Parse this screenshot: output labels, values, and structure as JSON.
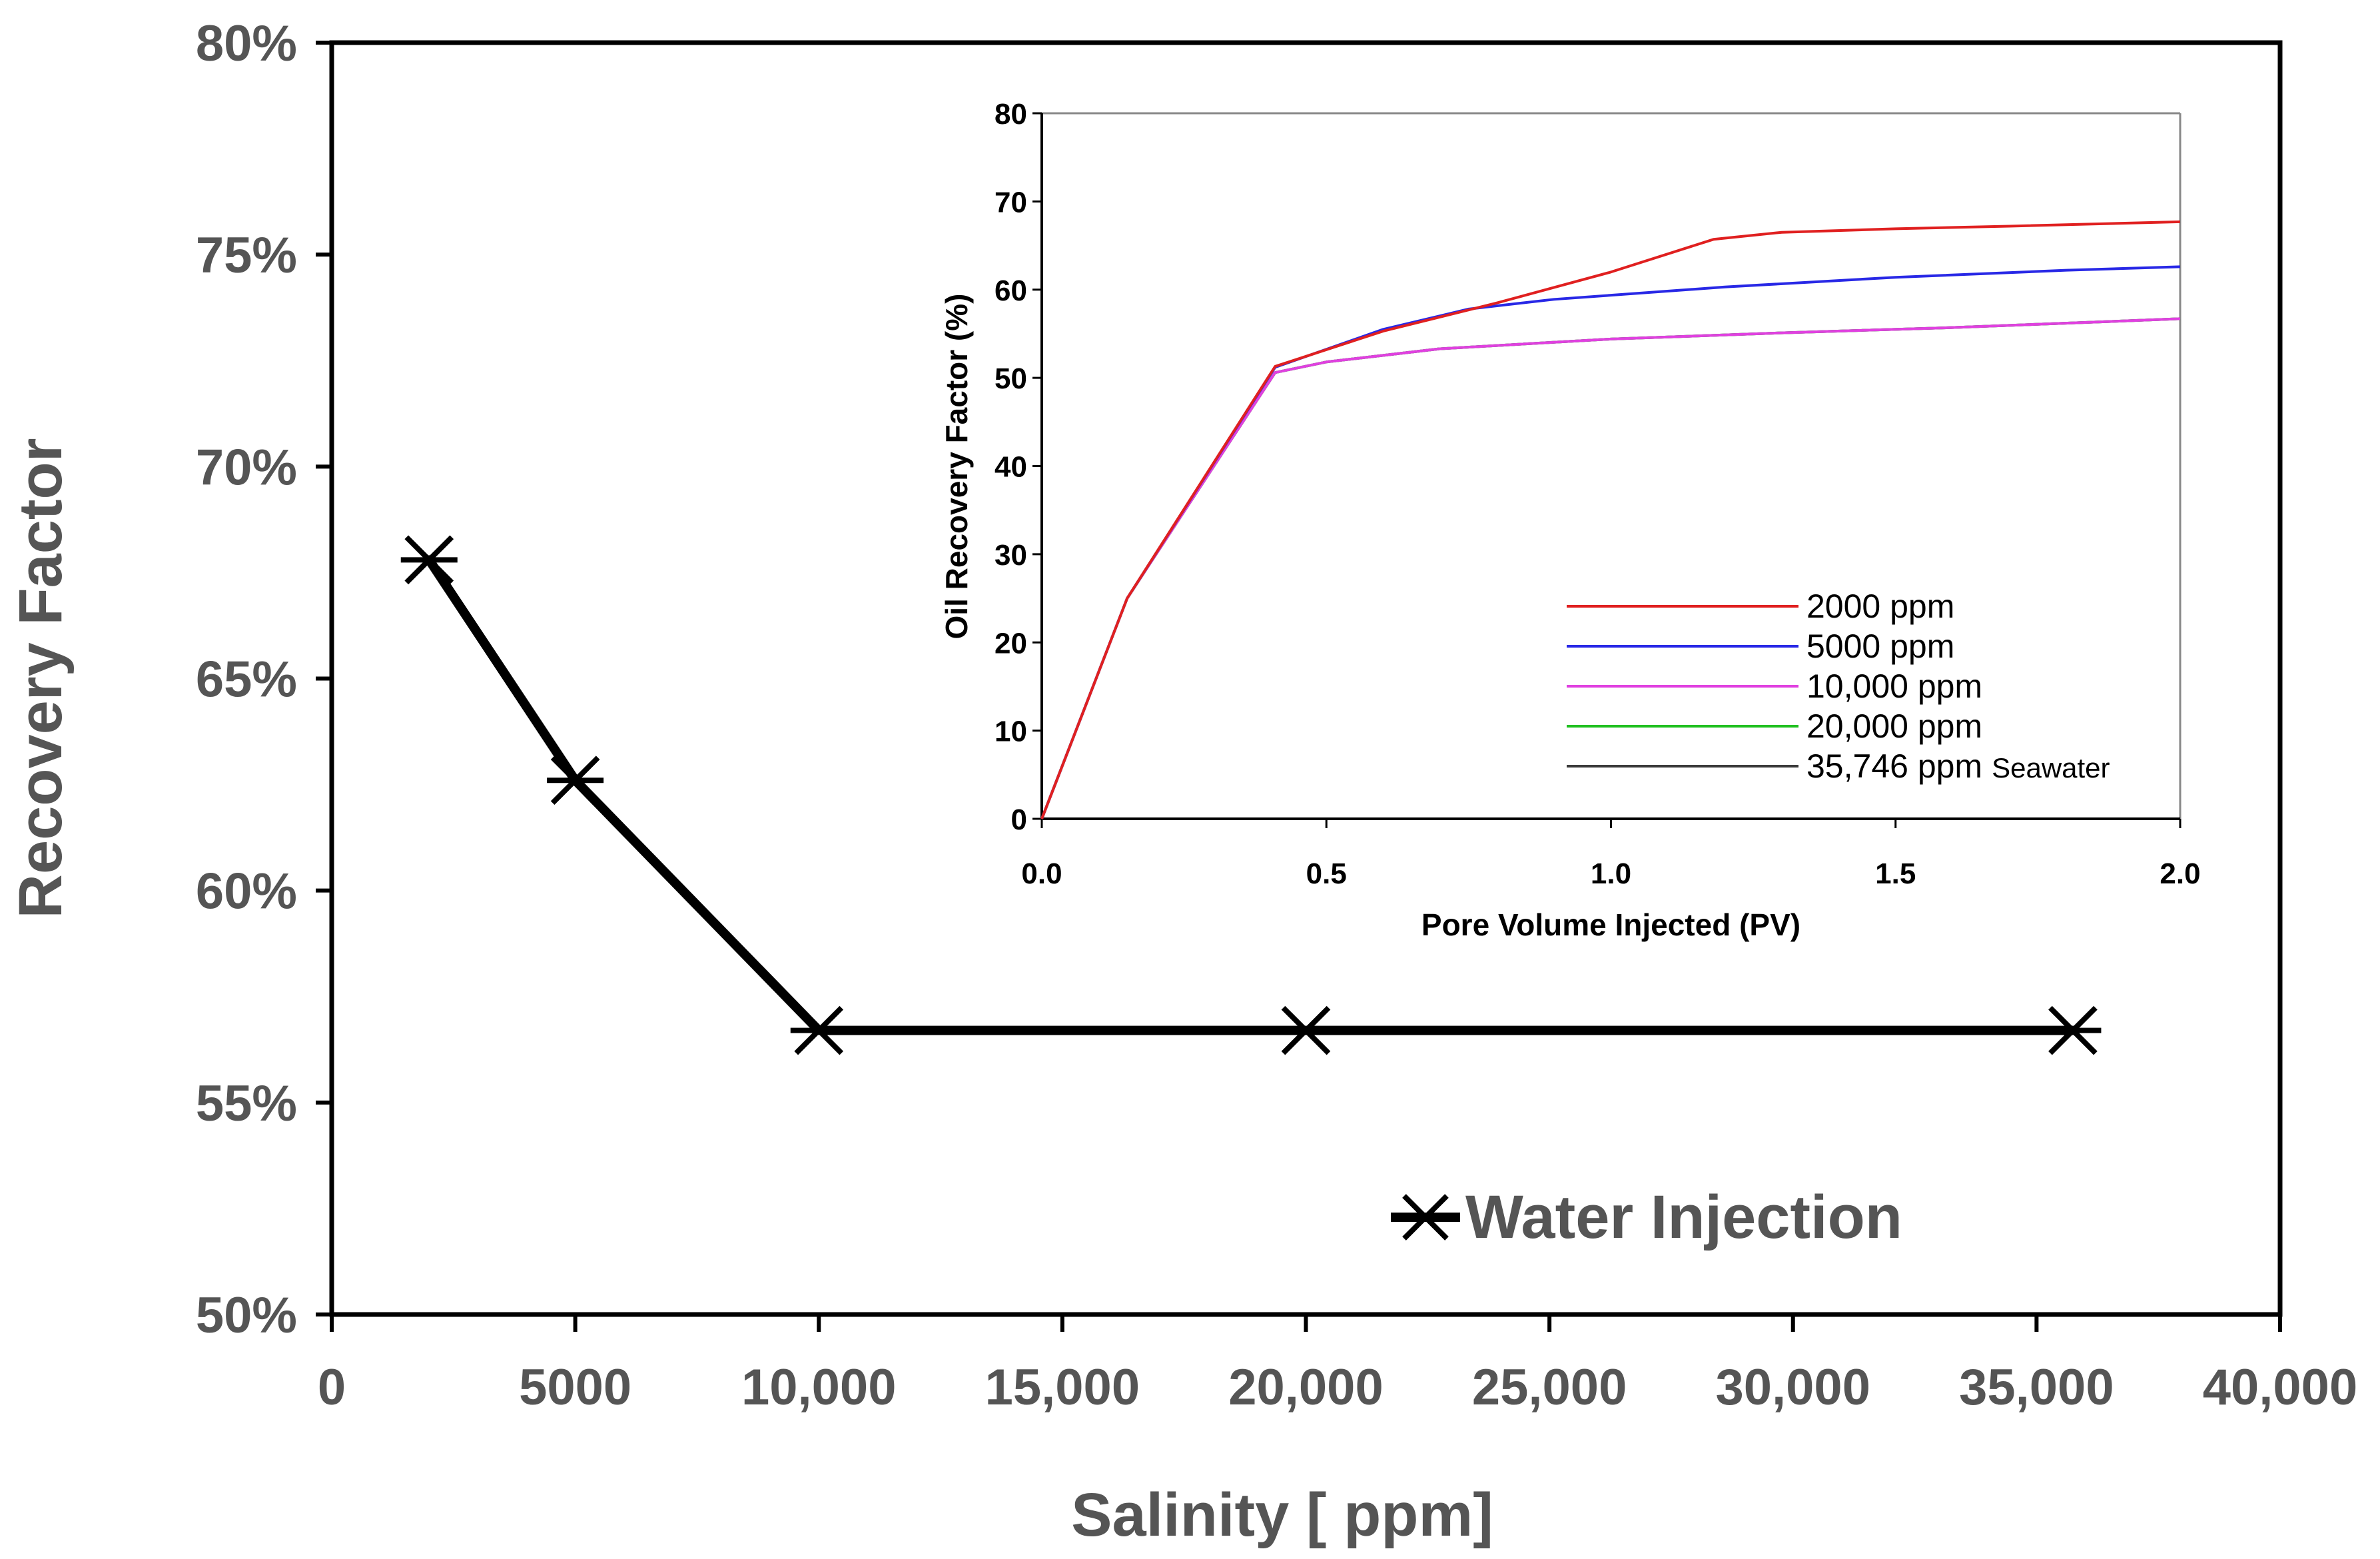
{
  "chart_data": [
    {
      "type": "line",
      "title": "",
      "xlabel": "Salinity [ ppm]",
      "ylabel": "Recovery Factor",
      "xlim": [
        0,
        40000
      ],
      "ylim": [
        50,
        80
      ],
      "x_ticks": [
        0,
        5000,
        10000,
        15000,
        20000,
        25000,
        30000,
        35000,
        40000
      ],
      "x_tick_labels": [
        "0",
        "5000",
        "10,000",
        "15,000",
        "20,000",
        "25,000",
        "30,000",
        "35,000",
        "40,000"
      ],
      "y_ticks": [
        50,
        55,
        60,
        65,
        70,
        75,
        80
      ],
      "y_tick_labels": [
        "50%",
        "55%",
        "60%",
        "65%",
        "70%",
        "75%",
        "80%"
      ],
      "legend_position": "lower-right",
      "grid": false,
      "series": [
        {
          "name": "Water Injection",
          "color": "#000000",
          "marker": "asterisk",
          "x": [
            2000,
            5000,
            10000,
            20000,
            35746
          ],
          "values": [
            67.8,
            62.6,
            56.7,
            56.7,
            56.7
          ]
        }
      ]
    },
    {
      "type": "line",
      "title": "",
      "xlabel": "Pore Volume Injected (PV)",
      "ylabel": "Oil Recovery Factor (%)",
      "xlim": [
        0,
        2.0
      ],
      "ylim": [
        0,
        80
      ],
      "x_ticks": [
        0,
        0.5,
        1.0,
        1.5,
        2.0
      ],
      "x_tick_labels": [
        "0.0",
        "0.5",
        "1.0",
        "1.5",
        "2.0"
      ],
      "y_ticks": [
        0,
        10,
        20,
        30,
        40,
        50,
        60,
        70,
        80
      ],
      "y_tick_labels": [
        "0",
        "10",
        "20",
        "30",
        "40",
        "50",
        "60",
        "70",
        "80"
      ],
      "legend_position": "lower-right",
      "grid": false,
      "series": [
        {
          "name": "2000 ppm",
          "color": "#e02020",
          "x": [
            0,
            0.15,
            0.41,
            0.6,
            0.8,
            1.0,
            1.18,
            1.3,
            1.5,
            1.7,
            2.0
          ],
          "values": [
            0,
            25,
            51.3,
            55.3,
            58.5,
            62.0,
            65.7,
            66.5,
            66.9,
            67.2,
            67.7
          ]
        },
        {
          "name": "5000 ppm",
          "color": "#2828e6",
          "x": [
            0,
            0.15,
            0.41,
            0.6,
            0.75,
            0.9,
            1.2,
            1.5,
            1.8,
            2.0
          ],
          "values": [
            0,
            25,
            51.2,
            55.5,
            57.8,
            58.9,
            60.3,
            61.4,
            62.2,
            62.6
          ]
        },
        {
          "name": "10,000 ppm",
          "color": "#e040e0",
          "x": [
            0,
            0.15,
            0.41,
            0.5,
            0.7,
            1.0,
            1.3,
            1.6,
            2.0
          ],
          "values": [
            0,
            25,
            50.6,
            51.8,
            53.3,
            54.4,
            55.1,
            55.7,
            56.7
          ]
        },
        {
          "name": "20,000 ppm",
          "color": "#20c020",
          "x": [
            0,
            0.15,
            0.41,
            0.5,
            0.7,
            1.0,
            1.3,
            1.6,
            2.0
          ],
          "values": [
            0,
            25,
            50.6,
            51.8,
            53.3,
            54.4,
            55.1,
            55.7,
            56.7
          ]
        },
        {
          "name": "35,746 ppm",
          "name_suffix": "Seawater",
          "color": "#3a3a3a",
          "x": [
            0,
            0.15,
            0.41,
            0.5,
            0.7,
            1.0,
            1.3,
            1.6,
            2.0
          ],
          "values": [
            0,
            25,
            50.6,
            51.8,
            53.3,
            54.4,
            55.1,
            55.7,
            56.7
          ]
        }
      ]
    }
  ]
}
